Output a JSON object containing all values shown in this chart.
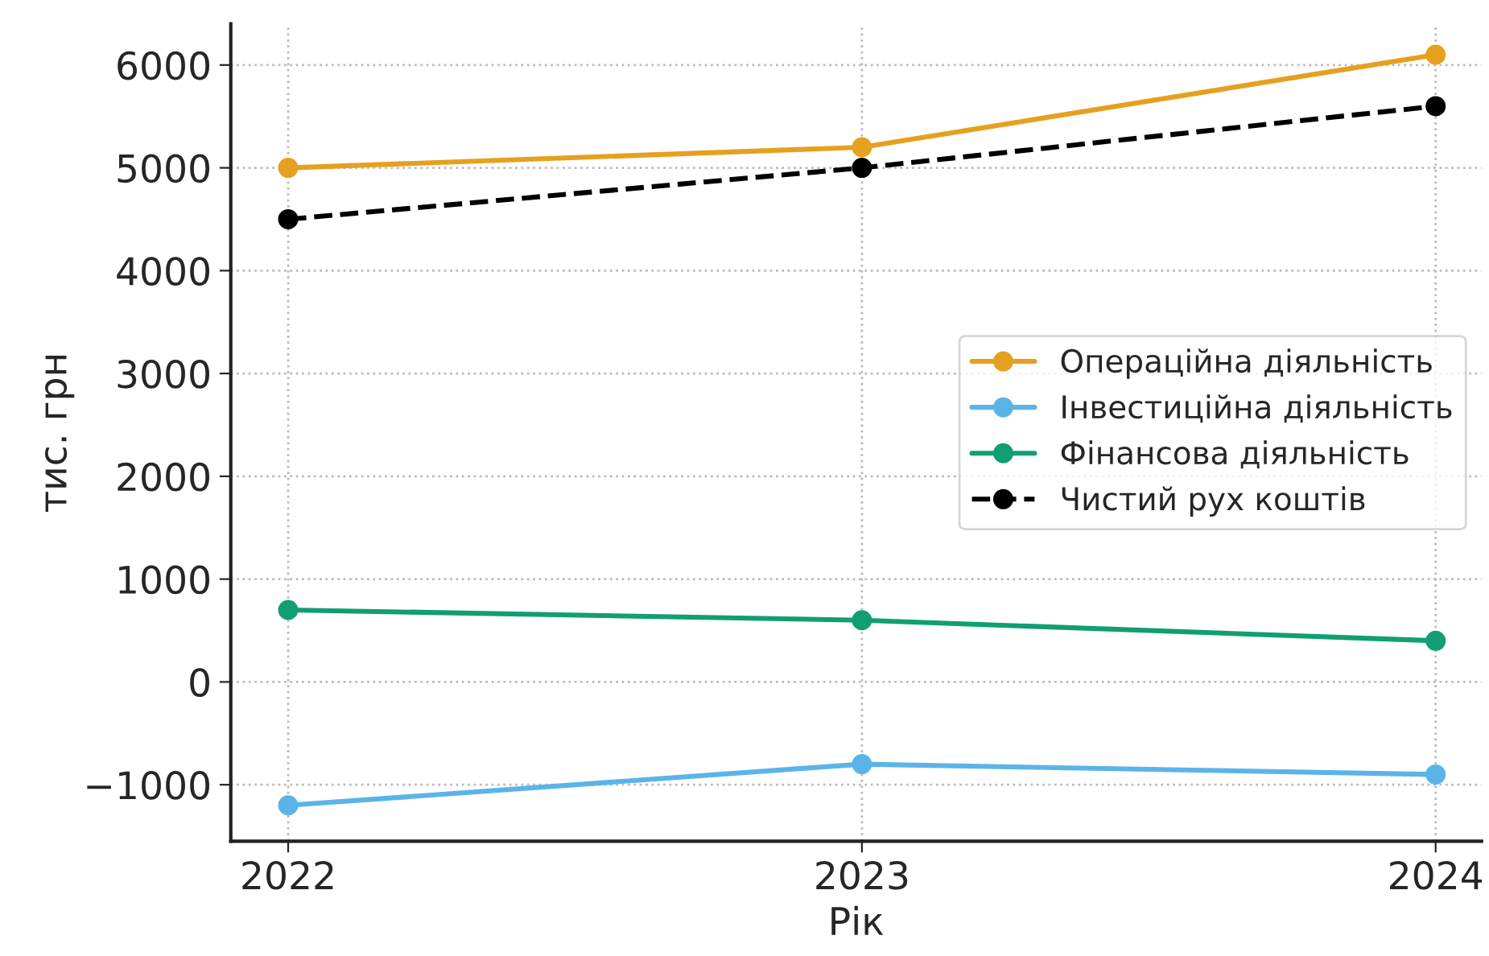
{
  "chart_data": {
    "type": "line",
    "xlabel": "Рік",
    "ylabel": "тис. грн",
    "x": [
      2022,
      2023,
      2024
    ],
    "xlim": [
      2021.9,
      2024.08
    ],
    "xticks": [
      2022,
      2023,
      2024
    ],
    "ylim": [
      -1550,
      6400
    ],
    "yticks": [
      {
        "value": -1000,
        "label": "−1000"
      },
      0,
      1000,
      2000,
      3000,
      4000,
      5000,
      6000
    ],
    "grid": true,
    "legend": "right",
    "marker": "circle",
    "series": [
      {
        "name": "Операційна діяльність",
        "color": "#e6a020",
        "values": [
          5000,
          5200,
          6100
        ]
      },
      {
        "name": "Інвестиційна діяльність",
        "color": "#5bb4e8",
        "values": [
          -1200,
          -800,
          -900
        ]
      },
      {
        "name": "Фінансова діяльність",
        "color": "#119e73",
        "values": [
          700,
          600,
          400
        ]
      },
      {
        "name": "Чистий рух коштів",
        "color": "#000000",
        "values": [
          4500,
          5000,
          5600
        ],
        "line_style": "dashed"
      }
    ]
  }
}
